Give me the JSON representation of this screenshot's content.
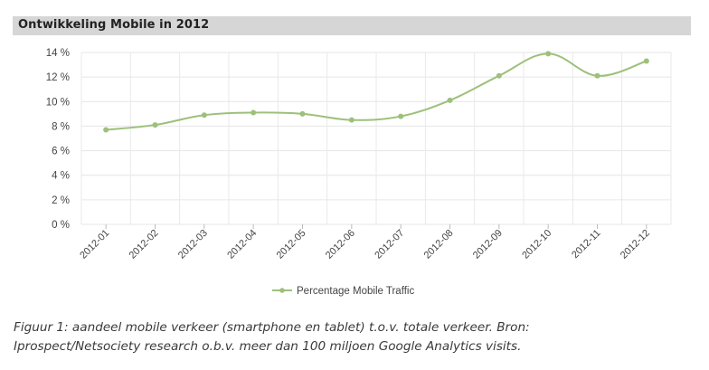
{
  "header": {
    "title": "Ontwikkeling Mobile in 2012"
  },
  "chart_data": {
    "type": "line",
    "title": "Ontwikkeling Mobile in 2012",
    "categories": [
      "2012-01",
      "2012-02",
      "2012-03",
      "2012-04",
      "2012-05",
      "2012-06",
      "2012-07",
      "2012-08",
      "2012-09",
      "2012-10",
      "2012-11",
      "2012-12"
    ],
    "series": [
      {
        "name": "Percentage Mobile Traffic",
        "values": [
          7.7,
          8.1,
          8.9,
          9.1,
          9.0,
          8.5,
          8.8,
          10.1,
          12.1,
          13.9,
          12.1,
          13.3
        ],
        "color": "#9dc07a"
      }
    ],
    "y_ticks": [
      "0 %",
      "2 %",
      "4 %",
      "6 %",
      "8 %",
      "10 %",
      "12 %",
      "14 %"
    ],
    "ylim": [
      0,
      14
    ],
    "xlabel": "",
    "ylabel": "",
    "grid": true,
    "legend": "bottom-center"
  },
  "caption": {
    "line1": "Figuur 1: aandeel mobile verkeer (smartphone en tablet) t.o.v. totale verkeer. Bron:",
    "line2": "Iprospect/Netsociety research o.b.v. meer dan 100 miljoen Google Analytics visits."
  }
}
